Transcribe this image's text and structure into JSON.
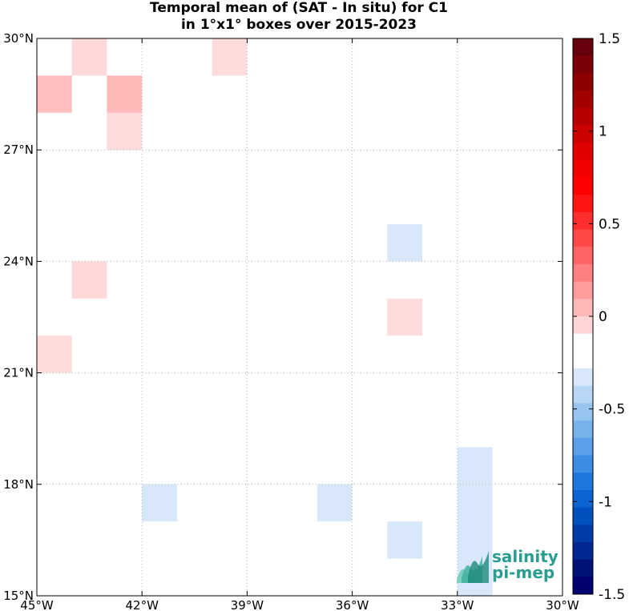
{
  "chart_data": {
    "type": "heatmap",
    "title_line1": "Temporal mean of (SAT - In situ) for C1",
    "title_line2": "in 1°x1° boxes over 2015-2023",
    "x_ticks": [
      "45°W",
      "42°W",
      "39°W",
      "36°W",
      "33°W",
      "30°W"
    ],
    "y_ticks": [
      "30°N",
      "27°N",
      "24°N",
      "21°N",
      "18°N",
      "15°N"
    ],
    "x_range_lon": [
      -45,
      -30
    ],
    "y_range_lat": [
      15,
      30
    ],
    "grid": true,
    "colorbar": {
      "min": -1.5,
      "max": 1.5,
      "levels": 30,
      "tick_labels": [
        "1.5",
        "1",
        "0.5",
        "0",
        "-0.5",
        "-1",
        "-1.5"
      ],
      "colors_top_to_bottom": [
        "#67000d",
        "#7a0007",
        "#8c0000",
        "#a30000",
        "#b80000",
        "#cc0000",
        "#e00000",
        "#f20000",
        "#ff0000",
        "#ff1414",
        "#ff2e2e",
        "#ff4848",
        "#ff6464",
        "#ff8080",
        "#ff9c9c",
        "#ffb8b8",
        "#ffd4d4",
        "#ffffff",
        "#ffffff",
        "#d8e8fa",
        "#b8d6f5",
        "#98c4f0",
        "#78b2ed",
        "#5a9fe8",
        "#3c8ce3",
        "#1e78dc",
        "#0c64d2",
        "#0050c0",
        "#003ca8",
        "#002890",
        "#001478",
        "#000070"
      ]
    },
    "cells": [
      {
        "lon": -44,
        "lat": 29,
        "value": 0.15,
        "color": "#ffd9d9"
      },
      {
        "lon": -45,
        "lat": 28,
        "value": 0.35,
        "color": "#ffbdbd"
      },
      {
        "lon": -43,
        "lat": 28,
        "value": 0.35,
        "color": "#ffb8b8"
      },
      {
        "lon": -43,
        "lat": 27,
        "value": 0.15,
        "color": "#ffdcdc"
      },
      {
        "lon": -40,
        "lat": 29,
        "value": 0.15,
        "color": "#ffdcdc"
      },
      {
        "lon": -44,
        "lat": 23,
        "value": 0.15,
        "color": "#ffd9d9"
      },
      {
        "lon": -45,
        "lat": 21,
        "value": 0.15,
        "color": "#ffdcdc"
      },
      {
        "lon": -35,
        "lat": 24,
        "value": -0.15,
        "color": "#d8e8fa"
      },
      {
        "lon": -35,
        "lat": 22,
        "value": 0.15,
        "color": "#ffdcdc"
      },
      {
        "lon": -42,
        "lat": 17,
        "value": -0.15,
        "color": "#d8e8fa"
      },
      {
        "lon": -37,
        "lat": 17,
        "value": -0.15,
        "color": "#d8e8fa"
      },
      {
        "lon": -35,
        "lat": 16,
        "value": -0.15,
        "color": "#d8e8fa"
      },
      {
        "lon": -33,
        "lat": 18,
        "value": -0.15,
        "color": "#d8e8fa"
      },
      {
        "lon": -33,
        "lat": 17,
        "value": -0.15,
        "color": "#d8e8fa"
      },
      {
        "lon": -33,
        "lat": 16,
        "value": -0.15,
        "color": "#d8e8fa"
      },
      {
        "lon": -33,
        "lat": 15,
        "value": -0.15,
        "color": "#d8e8fa"
      }
    ]
  },
  "logo": {
    "line1": "salinity",
    "line2": "pi-mep",
    "text_color": "#2a9d8f"
  }
}
